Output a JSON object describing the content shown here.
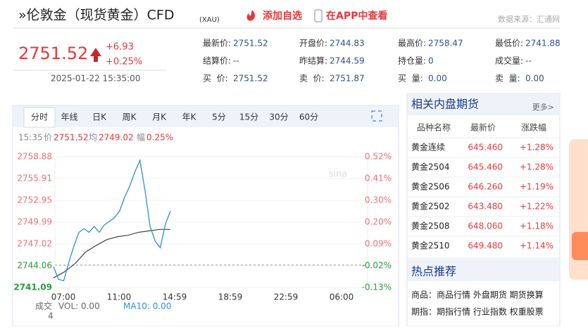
{
  "header": {
    "title": "»伦敦金（现货黄金）CFD",
    "code": "(XAU)",
    "add": "添加自选",
    "app": "在APP中查看",
    "source": "数据来源：汇通网"
  },
  "quote": {
    "price": "2751.52",
    "change": "+6.93",
    "pct": "+0.25%",
    "time": "2025-01-22 15:35:00"
  },
  "stats": [
    [
      [
        "最新价:",
        "2751.52"
      ],
      [
        "开盘价:",
        "2744.83"
      ],
      [
        "最高价:",
        "2758.47"
      ],
      [
        "最低价:",
        "2741.88"
      ]
    ],
    [
      [
        "结算价:",
        "--"
      ],
      [
        "昨结算:",
        "2744.59"
      ],
      [
        "持仓量:",
        "0"
      ],
      [
        "成交量:",
        "--"
      ]
    ],
    [
      [
        "买  价:",
        "2751.52"
      ],
      [
        "卖  价:",
        "2751.87"
      ],
      [
        "买  量:",
        "0.00"
      ],
      [
        "卖  量:",
        "0.00"
      ]
    ]
  ],
  "tabs": [
    "分时",
    "年线",
    "日K",
    "周K",
    "月K",
    "年K",
    "5分",
    "15分",
    "30分",
    "60分"
  ],
  "info": [
    "15:35",
    "价",
    "2751.52",
    "均",
    "2749.02",
    "幅",
    "0.25%"
  ],
  "chart": {
    "ylim": [
      2741.09,
      2758.88
    ],
    "yticks": [
      2758.88,
      2755.91,
      2752.95,
      2749.99,
      2747.02,
      2744.06,
      2741.09
    ],
    "pct_ticks": [
      "0.52%",
      "0.41%",
      "0.30%",
      "0.20%",
      "0.09%",
      "-0.02%",
      "-0.13%"
    ],
    "xticks": [
      "07:00",
      "11:00",
      "14:59",
      "18:59",
      "22:59",
      "06:00"
    ],
    "price": [
      2743.9,
      2742.2,
      2742.0,
      2744.5,
      2746.7,
      2748.6,
      2749.1,
      2748.6,
      2749.4,
      2748.6,
      2749.6,
      2750.1,
      2750.6,
      2751.5,
      2753.4,
      2754.9,
      2756.8,
      2758.4,
      2754.3,
      2749.4,
      2747.4,
      2746.5,
      2749.7,
      2751.5
    ],
    "avg": [
      2742.4,
      2743.2,
      2744.3,
      2745.9,
      2746.8,
      2747.6,
      2748.0,
      2748.2,
      2748.6,
      2748.8,
      2749.0,
      2749.0
    ],
    "vol_label": "成交",
    "vol_unit": "4",
    "vol": "VOL: 0.00",
    "ma": "MA10: 0.00"
  },
  "related": {
    "title": "相关内盘期货",
    "more": "更多>",
    "columns": [
      "品种名称",
      "最新价",
      "涨跌幅"
    ],
    "rows": [
      [
        "黄金连续",
        "645.460",
        "+1.28%"
      ],
      [
        "黄金2504",
        "645.460",
        "+1.28%"
      ],
      [
        "黄金2506",
        "646.260",
        "+1.19%"
      ],
      [
        "黄金2502",
        "643.480",
        "+1.22%"
      ],
      [
        "黄金2508",
        "648.060",
        "+1.18%"
      ],
      [
        "黄金2510",
        "649.480",
        "+1.14%"
      ]
    ]
  },
  "hot": {
    "title": "热点推荐",
    "lines": [
      "商品：商品行情 外盘期货 期货换算",
      "期指：期指行情 行业指数 权重股票"
    ]
  }
}
